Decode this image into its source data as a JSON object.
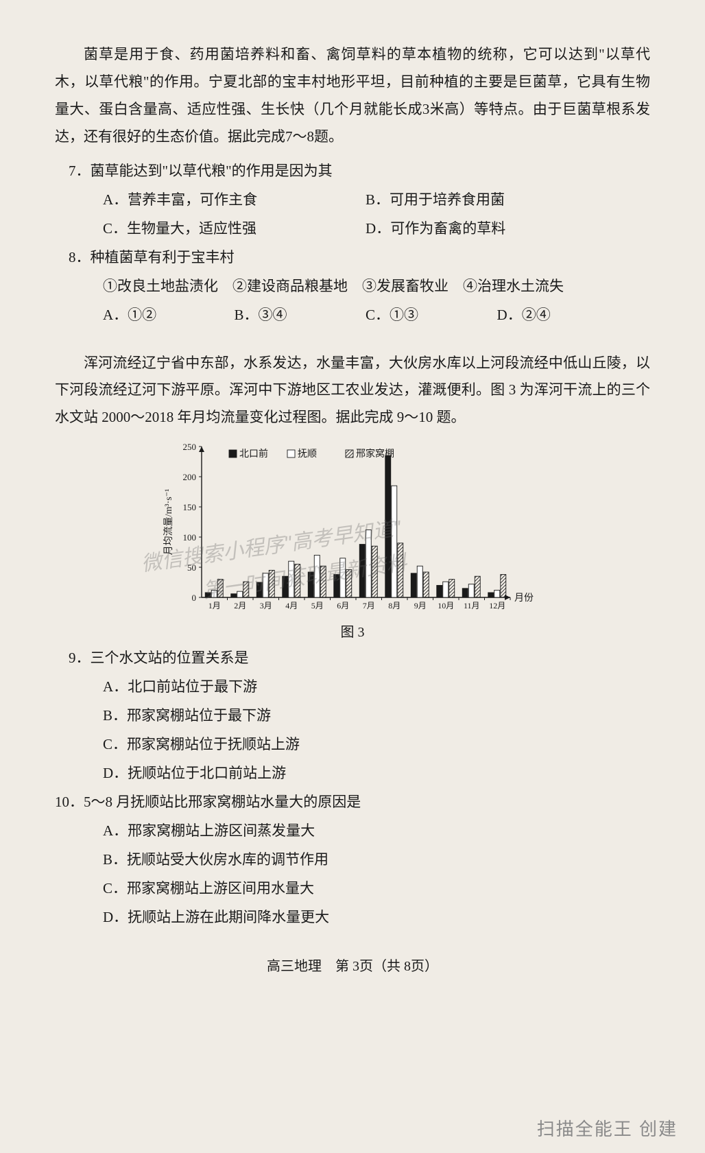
{
  "passage1": "菌草是用于食、药用菌培养料和畜、禽饲草料的草本植物的统称，它可以达到\"以草代木，以草代粮\"的作用。宁夏北部的宝丰村地形平坦，目前种植的主要是巨菌草，它具有生物量大、蛋白含量高、适应性强、生长快（几个月就能长成3米高）等特点。由于巨菌草根系发达，还有很好的生态价值。据此完成7～8题。",
  "q7": {
    "text": "7．菌草能达到\"以草代粮\"的作用是因为其",
    "A": "A．营养丰富，可作主食",
    "B": "B．可用于培养食用菌",
    "C": "C．生物量大，适应性强",
    "D": "D．可作为畜禽的草料"
  },
  "q8": {
    "text": "8．种植菌草有利于宝丰村",
    "sub": "①改良土地盐渍化　②建设商品粮基地　③发展畜牧业　④治理水土流失",
    "A": "A．①②",
    "B": "B．③④",
    "C": "C．①③",
    "D": "D．②④"
  },
  "passage2": "浑河流经辽宁省中东部，水系发达，水量丰富，大伙房水库以上河段流经中低山丘陵，以下河段流经辽河下游平原。浑河中下游地区工农业发达，灌溉便利。图 3 为浑河干流上的三个水文站 2000～2018 年月均流量变化过程图。据此完成 9～10 题。",
  "chart": {
    "type": "bar",
    "y_label": "月均流量/m³·s⁻¹",
    "x_label": "月份",
    "x_categories": [
      "1月",
      "2月",
      "3月",
      "4月",
      "5月",
      "6月",
      "7月",
      "8月",
      "9月",
      "10月",
      "11月",
      "12月"
    ],
    "ylim": [
      0,
      250
    ],
    "ytick_step": 50,
    "legend": [
      {
        "name": "北口前",
        "fill": "#1a1a1a"
      },
      {
        "name": "抚顺",
        "fill": "#ffffff"
      },
      {
        "name": "邢家窝棚",
        "fill": "#ffffff",
        "hatch": "diag"
      }
    ],
    "series": {
      "北口前": [
        8,
        6,
        25,
        35,
        42,
        38,
        88,
        235,
        40,
        20,
        15,
        8
      ],
      "抚顺": [
        12,
        10,
        40,
        60,
        70,
        65,
        112,
        185,
        52,
        26,
        22,
        12
      ],
      "邢家窝棚": [
        30,
        26,
        45,
        55,
        52,
        46,
        85,
        90,
        42,
        30,
        35,
        38
      ]
    },
    "bar_group_width": 0.72,
    "bg": "#f0ece5",
    "axis_color": "#1a1a1a",
    "caption": "图 3"
  },
  "q9": {
    "text": "9．三个水文站的位置关系是",
    "A": "A．北口前站位于最下游",
    "B": "B．邢家窝棚站位于最下游",
    "C": "C．邢家窝棚站位于抚顺站上游",
    "D": "D．抚顺站位于北口前站上游"
  },
  "q10": {
    "text": "10．5～8 月抚顺站比邢家窝棚站水量大的原因是",
    "A": "A．邢家窝棚站上游区间蒸发量大",
    "B": "B．抚顺站受大伙房水库的调节作用",
    "C": "C．邢家窝棚站上游区间用水量大",
    "D": "D．抚顺站上游在此期间降水量更大"
  },
  "footer": "高三地理　第 3页（共 8页）",
  "scan_stamp": "扫描全能王 创建",
  "watermark": {
    "line1": "微信搜索小程序\"高考早知道\"",
    "line2": "第一时间获取最新资料"
  }
}
